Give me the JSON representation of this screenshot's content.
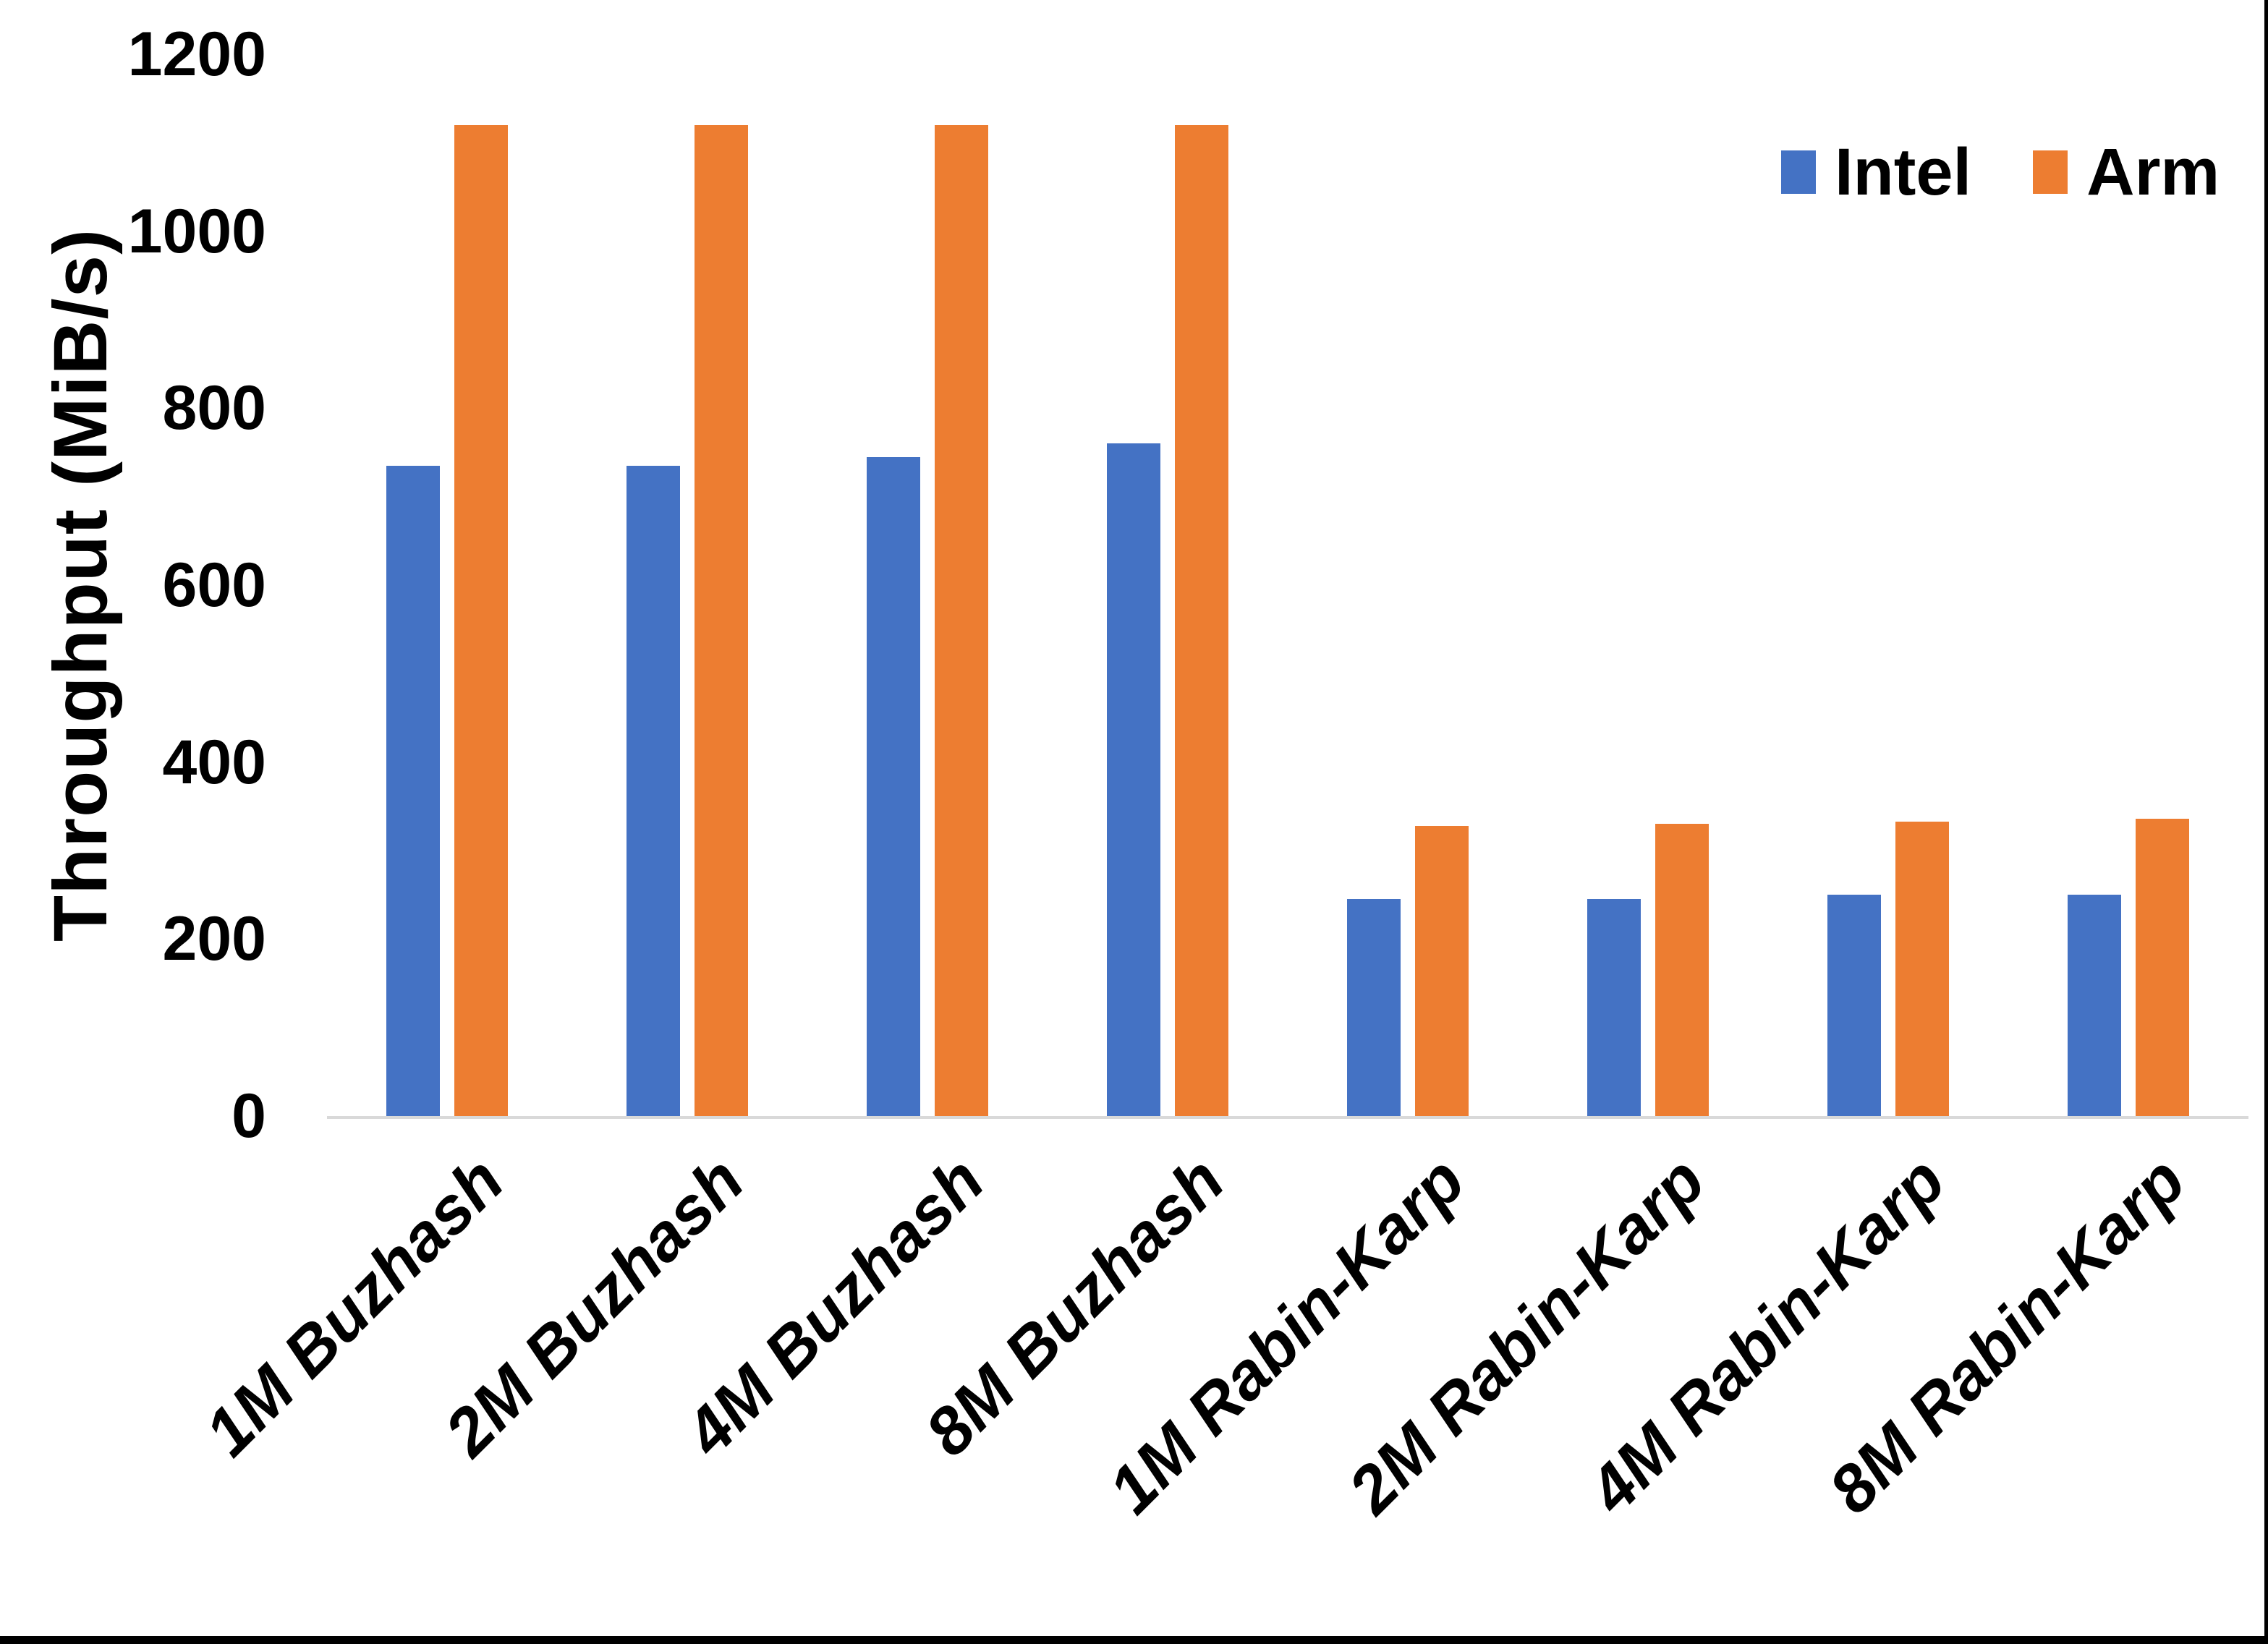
{
  "chart_data": {
    "type": "bar",
    "title": "",
    "xlabel": "",
    "ylabel": "Throughput (MiB/s)",
    "ylim": [
      0,
      1200
    ],
    "yticks": [
      "0",
      "200",
      "400",
      "600",
      "800",
      "1000",
      "1200"
    ],
    "grid": false,
    "legend_position": "top-right",
    "categories": [
      "1M Buzhash",
      "2M Buzhash",
      "4M Buzhash",
      "8M Buzhash",
      "1M Rabin-Karp",
      "2M Rabin-Karp",
      "4M Rabin-Karp",
      "8M Rabin-Karp"
    ],
    "series": [
      {
        "name": "Intel",
        "color": "#4472C4",
        "values": [
          735,
          735,
          745,
          760,
          245,
          245,
          250,
          250
        ]
      },
      {
        "name": "Arm",
        "color": "#ED7D31",
        "values": [
          1120,
          1120,
          1120,
          1120,
          328,
          330,
          333,
          336
        ]
      }
    ],
    "axis_line_color": "#D9D9D9",
    "text_color": "#000000"
  }
}
